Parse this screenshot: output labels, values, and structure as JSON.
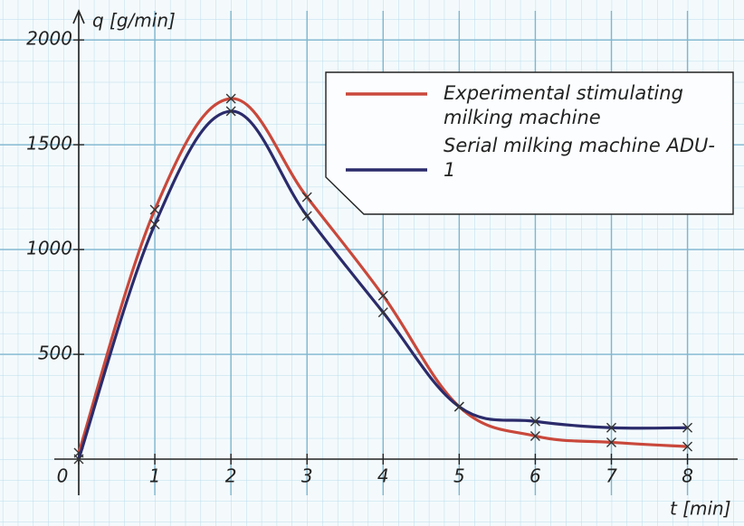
{
  "chart_data": {
    "type": "line",
    "x_label": "t [min]",
    "y_label": "q [g/min]",
    "x": [
      0,
      1,
      2,
      3,
      4,
      5,
      6,
      7,
      8
    ],
    "series": [
      {
        "name": "Experimental stimulating milking machine",
        "color": "#c9483b",
        "values": [
          30,
          1190,
          1720,
          1250,
          780,
          250,
          110,
          80,
          60
        ]
      },
      {
        "name": "Serial milking machine ADU-1",
        "color": "#2b2b6b",
        "values": [
          0,
          1120,
          1660,
          1160,
          700,
          250,
          180,
          150,
          150
        ]
      }
    ],
    "xlim": [
      0,
      8.6
    ],
    "ylim": [
      0,
      2100
    ],
    "xticks": [
      0,
      1,
      2,
      3,
      4,
      5,
      6,
      7,
      8
    ],
    "yticks": [
      500,
      1000,
      1500,
      2000
    ],
    "grid": true
  }
}
